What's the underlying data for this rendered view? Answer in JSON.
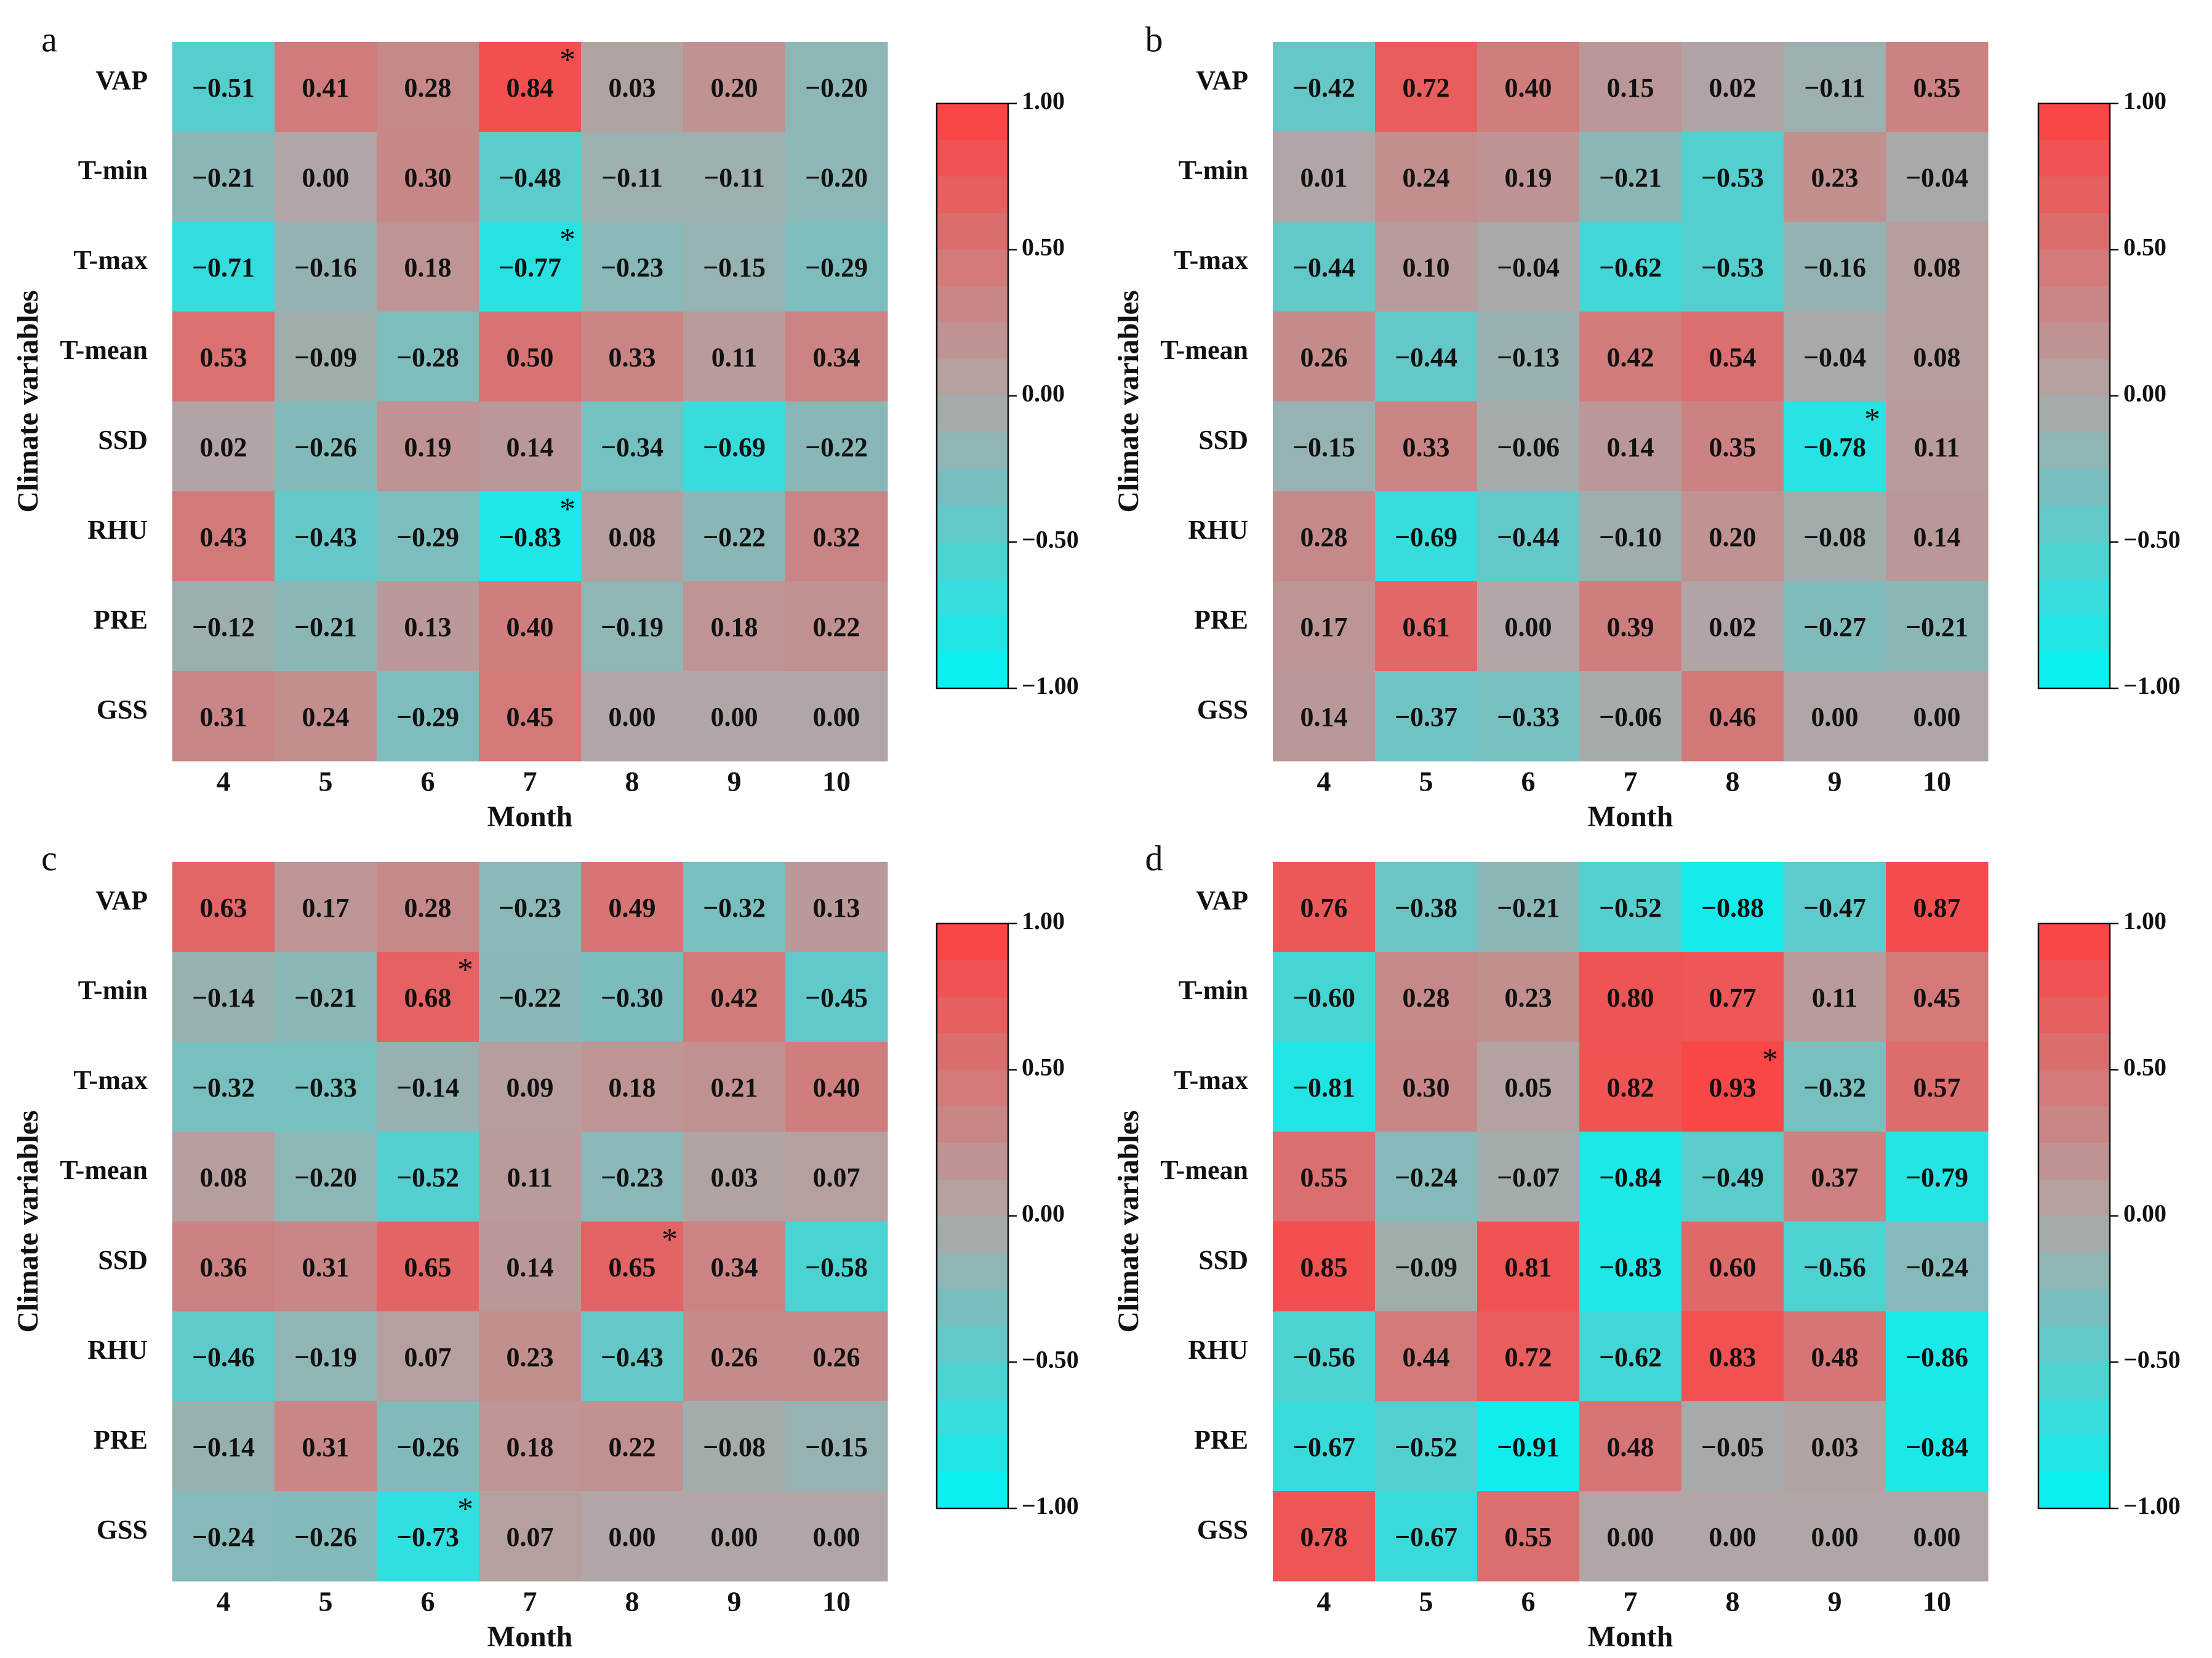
{
  "chart_data": [
    {
      "type": "heatmap",
      "panel": "a",
      "xlabel": "Month",
      "ylabel": "Climate variables",
      "rows": [
        "VAP",
        "T-min",
        "T-max",
        "T-mean",
        "SSD",
        "RHU",
        "PRE",
        "GSS"
      ],
      "columns": [
        "4",
        "5",
        "6",
        "7",
        "8",
        "9",
        "10"
      ],
      "values": [
        [
          -0.51,
          0.41,
          0.28,
          0.84,
          0.03,
          0.2,
          -0.2
        ],
        [
          -0.21,
          0.0,
          0.3,
          -0.48,
          -0.11,
          -0.11,
          -0.2
        ],
        [
          -0.71,
          -0.16,
          0.18,
          -0.77,
          -0.23,
          -0.15,
          -0.29
        ],
        [
          0.53,
          -0.09,
          -0.28,
          0.5,
          0.33,
          0.11,
          0.34
        ],
        [
          0.02,
          -0.26,
          0.19,
          0.14,
          -0.34,
          -0.69,
          -0.22
        ],
        [
          0.43,
          -0.43,
          -0.29,
          -0.83,
          0.08,
          -0.22,
          0.32
        ],
        [
          -0.12,
          -0.21,
          0.13,
          0.4,
          -0.19,
          0.18,
          0.22
        ],
        [
          0.31,
          0.24,
          -0.29,
          0.45,
          0.0,
          0.0,
          0.0
        ]
      ],
      "significant": [
        [
          0,
          3
        ],
        [
          2,
          3
        ],
        [
          5,
          3
        ]
      ],
      "colorbar": {
        "range": [
          -1.0,
          1.0
        ],
        "ticks": [
          "1.00",
          "0.50",
          "0.00",
          "−0.50",
          "−1.00"
        ]
      }
    },
    {
      "type": "heatmap",
      "panel": "b",
      "xlabel": "Month",
      "ylabel": "Climate variables",
      "rows": [
        "VAP",
        "T-min",
        "T-max",
        "T-mean",
        "SSD",
        "RHU",
        "PRE",
        "GSS"
      ],
      "columns": [
        "4",
        "5",
        "6",
        "7",
        "8",
        "9",
        "10"
      ],
      "values": [
        [
          -0.42,
          0.72,
          0.4,
          0.15,
          0.02,
          -0.11,
          0.35
        ],
        [
          0.01,
          0.24,
          0.19,
          -0.21,
          -0.53,
          0.23,
          -0.04
        ],
        [
          -0.44,
          0.1,
          -0.04,
          -0.62,
          -0.53,
          -0.16,
          0.08
        ],
        [
          0.26,
          -0.44,
          -0.13,
          0.42,
          0.54,
          -0.04,
          0.08
        ],
        [
          -0.15,
          0.33,
          -0.06,
          0.14,
          0.35,
          -0.78,
          0.11
        ],
        [
          0.28,
          -0.69,
          -0.44,
          -0.1,
          0.2,
          -0.08,
          0.14
        ],
        [
          0.17,
          0.61,
          0.0,
          0.39,
          0.02,
          -0.27,
          -0.21
        ],
        [
          0.14,
          -0.37,
          -0.33,
          -0.06,
          0.46,
          0.0,
          0.0
        ]
      ],
      "significant": [
        [
          4,
          5
        ]
      ],
      "colorbar": {
        "range": [
          -1.0,
          1.0
        ],
        "ticks": [
          "1.00",
          "0.50",
          "0.00",
          "−0.50",
          "−1.00"
        ]
      }
    },
    {
      "type": "heatmap",
      "panel": "c",
      "xlabel": "Month",
      "ylabel": "Climate variables",
      "rows": [
        "VAP",
        "T-min",
        "T-max",
        "T-mean",
        "SSD",
        "RHU",
        "PRE",
        "GSS"
      ],
      "columns": [
        "4",
        "5",
        "6",
        "7",
        "8",
        "9",
        "10"
      ],
      "values": [
        [
          0.63,
          0.17,
          0.28,
          -0.23,
          0.49,
          -0.32,
          0.13
        ],
        [
          -0.14,
          -0.21,
          0.68,
          -0.22,
          -0.3,
          0.42,
          -0.45
        ],
        [
          -0.32,
          -0.33,
          -0.14,
          0.09,
          0.18,
          0.21,
          0.4
        ],
        [
          0.08,
          -0.2,
          -0.52,
          0.11,
          -0.23,
          0.03,
          0.07
        ],
        [
          0.36,
          0.31,
          0.65,
          0.14,
          0.65,
          0.34,
          -0.58
        ],
        [
          -0.46,
          -0.19,
          0.07,
          0.23,
          -0.43,
          0.26,
          0.26
        ],
        [
          -0.14,
          0.31,
          -0.26,
          0.18,
          0.22,
          -0.08,
          -0.15
        ],
        [
          -0.24,
          -0.26,
          -0.73,
          0.07,
          0.0,
          0.0,
          0.0
        ]
      ],
      "significant": [
        [
          1,
          2
        ],
        [
          4,
          4
        ],
        [
          7,
          2
        ]
      ],
      "colorbar": {
        "range": [
          -1.0,
          1.0
        ],
        "ticks": [
          "1.00",
          "0.50",
          "0.00",
          "−0.50",
          "−1.00"
        ]
      }
    },
    {
      "type": "heatmap",
      "panel": "d",
      "xlabel": "Month",
      "ylabel": "Climate variables",
      "rows": [
        "VAP",
        "T-min",
        "T-max",
        "T-mean",
        "SSD",
        "RHU",
        "PRE",
        "GSS"
      ],
      "columns": [
        "4",
        "5",
        "6",
        "7",
        "8",
        "9",
        "10"
      ],
      "values": [
        [
          0.76,
          -0.38,
          -0.21,
          -0.52,
          -0.88,
          -0.47,
          0.87
        ],
        [
          -0.6,
          0.28,
          0.23,
          0.8,
          0.77,
          0.11,
          0.45
        ],
        [
          -0.81,
          0.3,
          0.05,
          0.82,
          0.93,
          -0.32,
          0.57
        ],
        [
          0.55,
          -0.24,
          -0.07,
          -0.84,
          -0.49,
          0.37,
          -0.79
        ],
        [
          0.85,
          -0.09,
          0.81,
          -0.83,
          0.6,
          -0.56,
          -0.24
        ],
        [
          -0.56,
          0.44,
          0.72,
          -0.62,
          0.83,
          0.48,
          -0.86
        ],
        [
          -0.67,
          -0.52,
          -0.91,
          0.48,
          -0.05,
          0.03,
          -0.84
        ],
        [
          0.78,
          -0.67,
          0.55,
          0.0,
          0.0,
          0.0,
          0.0
        ]
      ],
      "significant": [
        [
          2,
          4
        ]
      ],
      "colorbar": {
        "range": [
          -1.0,
          1.0
        ],
        "ticks": [
          "1.00",
          "0.50",
          "0.00",
          "−0.50",
          "−1.00"
        ]
      }
    }
  ],
  "significance_marker": "*",
  "colors": {
    "positive": "#ff4040",
    "neutral": "#b0a6a6",
    "negative": "#00f4f4"
  }
}
